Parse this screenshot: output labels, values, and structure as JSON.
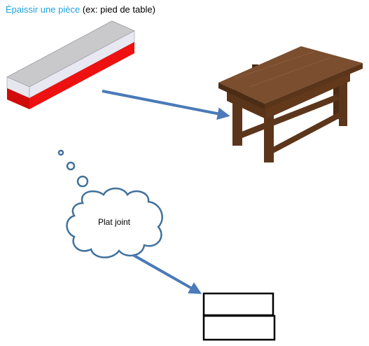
{
  "title": {
    "highlight": "Épaissir une pièce",
    "rest": " (ex: pied de table)"
  },
  "cloud": {
    "label": "Plat joint"
  },
  "colors": {
    "title_accent": "#1fa2e0",
    "arrow": "#4a7ab8",
    "bar_top": "#c9c9cc",
    "bar_front": "#e8e8f0",
    "bar_red": "#ee1111",
    "table_wood": "#6e4528"
  },
  "icons": [
    "piece-bar-icon",
    "wooden-table-icon",
    "thought-cloud-icon",
    "stacked-boards-icon"
  ]
}
